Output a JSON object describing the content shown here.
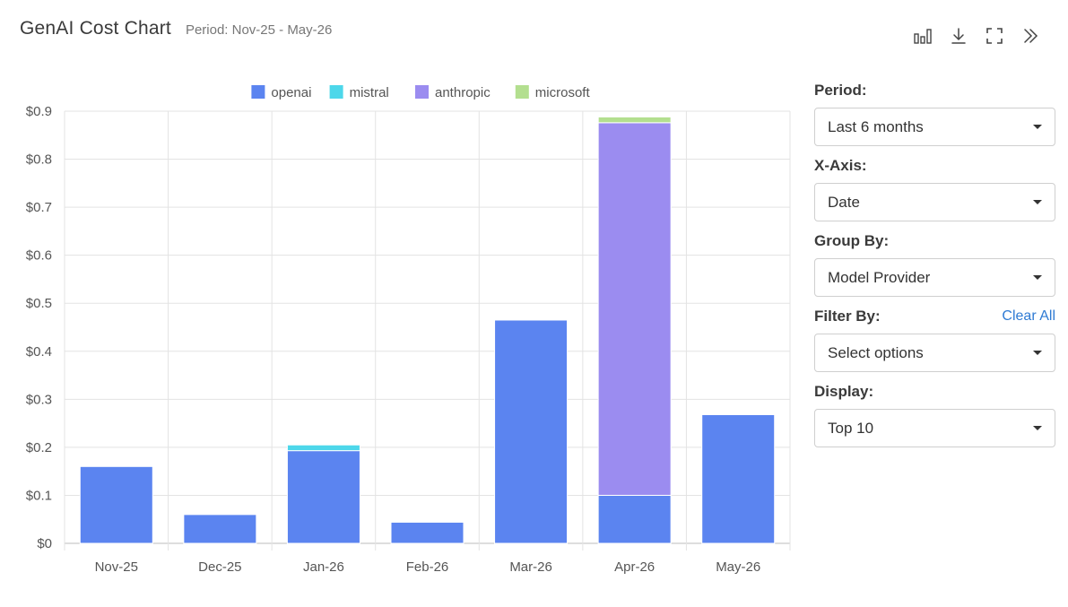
{
  "header": {
    "title": "GenAI Cost Chart",
    "subtitle": "Period: Nov-25 - May-26"
  },
  "toolbar": {
    "icons": [
      "bar-chart-icon",
      "download-icon",
      "fullscreen-icon",
      "collapse-panel-icon"
    ]
  },
  "panel": {
    "period": {
      "label": "Period:",
      "value": "Last 6 months"
    },
    "xaxis": {
      "label": "X-Axis:",
      "value": "Date"
    },
    "groupby": {
      "label": "Group By:",
      "value": "Model Provider"
    },
    "filterby": {
      "label": "Filter By:",
      "value": "Select options",
      "clear": "Clear All"
    },
    "display": {
      "label": "Display:",
      "value": "Top 10"
    }
  },
  "chart_data": {
    "type": "bar",
    "stacked": true,
    "categories": [
      "Nov-25",
      "Dec-25",
      "Jan-26",
      "Feb-26",
      "Mar-26",
      "Apr-26",
      "May-26"
    ],
    "series": [
      {
        "name": "openai",
        "color": "#5b84f0",
        "values": [
          0.16,
          0.06,
          0.193,
          0.044,
          0.465,
          0.1,
          0.268
        ]
      },
      {
        "name": "mistral",
        "color": "#4dd7ea",
        "values": [
          0,
          0,
          0.012,
          0,
          0,
          0,
          0
        ]
      },
      {
        "name": "anthropic",
        "color": "#9b8cf0",
        "values": [
          0,
          0,
          0,
          0,
          0,
          0.776,
          0
        ]
      },
      {
        "name": "microsoft",
        "color": "#b3df8f",
        "values": [
          0,
          0,
          0,
          0,
          0,
          0.012,
          0
        ]
      }
    ],
    "ylim": [
      0,
      0.9
    ],
    "yticks": [
      "$0",
      "$0.1",
      "$0.2",
      "$0.3",
      "$0.4",
      "$0.5",
      "$0.6",
      "$0.7",
      "$0.8",
      "$0.9"
    ],
    "grid": true,
    "legend": "top-center"
  }
}
